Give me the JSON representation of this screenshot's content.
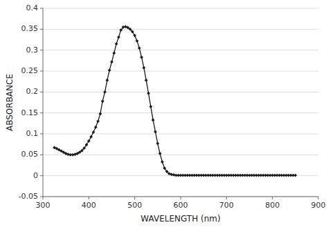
{
  "chart_data": {
    "type": "line",
    "x": [
      325,
      330,
      335,
      340,
      345,
      350,
      355,
      360,
      365,
      370,
      375,
      380,
      385,
      390,
      395,
      400,
      405,
      410,
      415,
      420,
      425,
      430,
      435,
      440,
      445,
      450,
      455,
      460,
      465,
      470,
      475,
      480,
      485,
      490,
      495,
      500,
      505,
      510,
      515,
      520,
      525,
      530,
      535,
      540,
      545,
      550,
      555,
      560,
      565,
      570,
      575,
      580,
      585,
      590,
      595,
      600,
      605,
      610,
      615,
      620,
      625,
      630,
      635,
      640,
      645,
      650,
      655,
      660,
      665,
      670,
      675,
      680,
      685,
      690,
      695,
      700,
      705,
      710,
      715,
      720,
      725,
      730,
      735,
      740,
      745,
      750,
      755,
      760,
      765,
      770,
      775,
      780,
      785,
      790,
      795,
      800,
      805,
      810,
      815,
      820,
      825,
      830,
      835,
      840,
      845,
      850
    ],
    "values": [
      0.067,
      0.065,
      0.062,
      0.059,
      0.056,
      0.053,
      0.051,
      0.05,
      0.05,
      0.051,
      0.053,
      0.056,
      0.06,
      0.066,
      0.074,
      0.083,
      0.093,
      0.104,
      0.116,
      0.13,
      0.148,
      0.178,
      0.2,
      0.228,
      0.252,
      0.272,
      0.293,
      0.315,
      0.331,
      0.348,
      0.355,
      0.356,
      0.354,
      0.35,
      0.344,
      0.335,
      0.322,
      0.305,
      0.283,
      0.258,
      0.228,
      0.197,
      0.165,
      0.133,
      0.105,
      0.077,
      0.053,
      0.033,
      0.018,
      0.01,
      0.005,
      0.003,
      0.002,
      0.001,
      0.001,
      0.001,
      0.001,
      0.001,
      0.001,
      0.001,
      0.001,
      0.001,
      0.001,
      0.001,
      0.001,
      0.001,
      0.001,
      0.001,
      0.001,
      0.001,
      0.001,
      0.001,
      0.001,
      0.001,
      0.001,
      0.001,
      0.001,
      0.001,
      0.001,
      0.001,
      0.001,
      0.001,
      0.001,
      0.001,
      0.001,
      0.001,
      0.001,
      0.001,
      0.001,
      0.001,
      0.001,
      0.001,
      0.001,
      0.001,
      0.001,
      0.001,
      0.001,
      0.001,
      0.001,
      0.001,
      0.001,
      0.001,
      0.001,
      0.001,
      0.001,
      0.001
    ],
    "color": "#1a1a1a",
    "marker": "diamond",
    "xlabel": "WAVELENGTH (nm)",
    "ylabel": "ABSORBANCE",
    "xlim": [
      300,
      900
    ],
    "ylim": [
      -0.05,
      0.4
    ],
    "xticks": [
      300,
      400,
      500,
      600,
      700,
      800,
      900
    ],
    "yticks": [
      -0.05,
      0,
      0.05,
      0.1,
      0.15,
      0.2,
      0.25,
      0.3,
      0.35,
      0.4
    ],
    "grid": true
  }
}
